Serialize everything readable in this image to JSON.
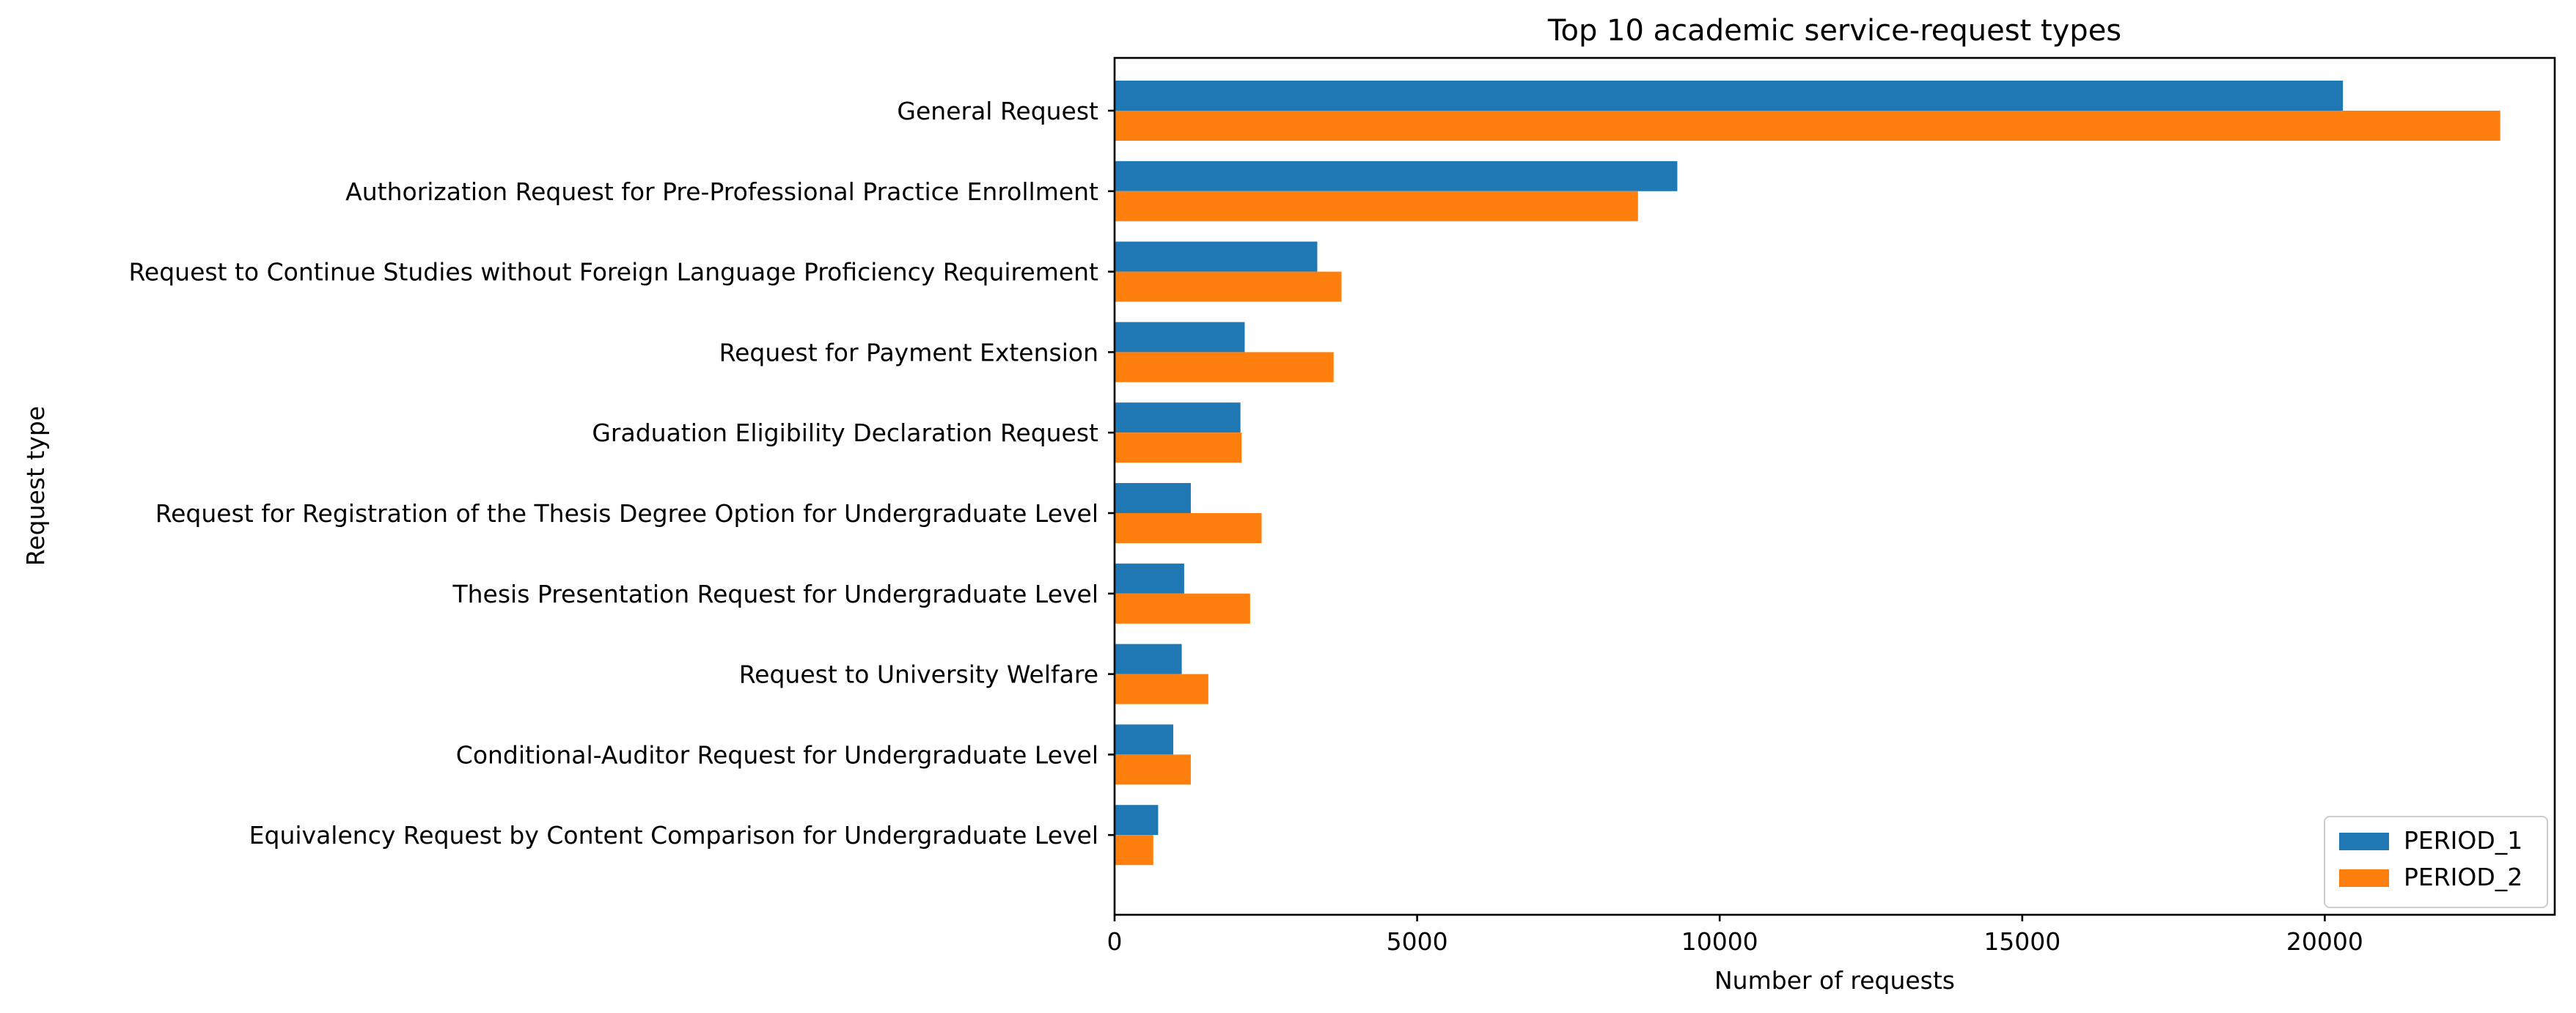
{
  "chart_data": {
    "type": "bar",
    "orientation": "horizontal",
    "title": "Top 10 academic service-request types",
    "xlabel": "Number of requests",
    "ylabel": "Request type",
    "xlim": [
      0,
      23800
    ],
    "xticks": [
      0,
      5000,
      10000,
      15000,
      20000
    ],
    "grid": false,
    "legend_position": "lower right",
    "categories": [
      "General Request",
      "Authorization Request for Pre-Professional Practice Enrollment",
      "Request to Continue Studies without Foreign Language Proficiency Requirement",
      "Request for Payment Extension",
      "Graduation Eligibility Declaration Request",
      "Request for Registration of the Thesis Degree Option for Undergraduate Level",
      "Thesis Presentation Request for Undergraduate Level",
      "Request to University Welfare",
      "Conditional-Auditor Request for Undergraduate Level",
      "Equivalency Request by Content Comparison for Undergraduate Level"
    ],
    "series": [
      {
        "name": "PERIOD_1",
        "color": "#1f77b4",
        "values": [
          20300,
          9300,
          3350,
          2150,
          2080,
          1260,
          1150,
          1110,
          970,
          720
        ]
      },
      {
        "name": "PERIOD_2",
        "color": "#ff7f0e",
        "values": [
          22900,
          8650,
          3750,
          3620,
          2100,
          2430,
          2240,
          1550,
          1260,
          640
        ]
      }
    ]
  }
}
